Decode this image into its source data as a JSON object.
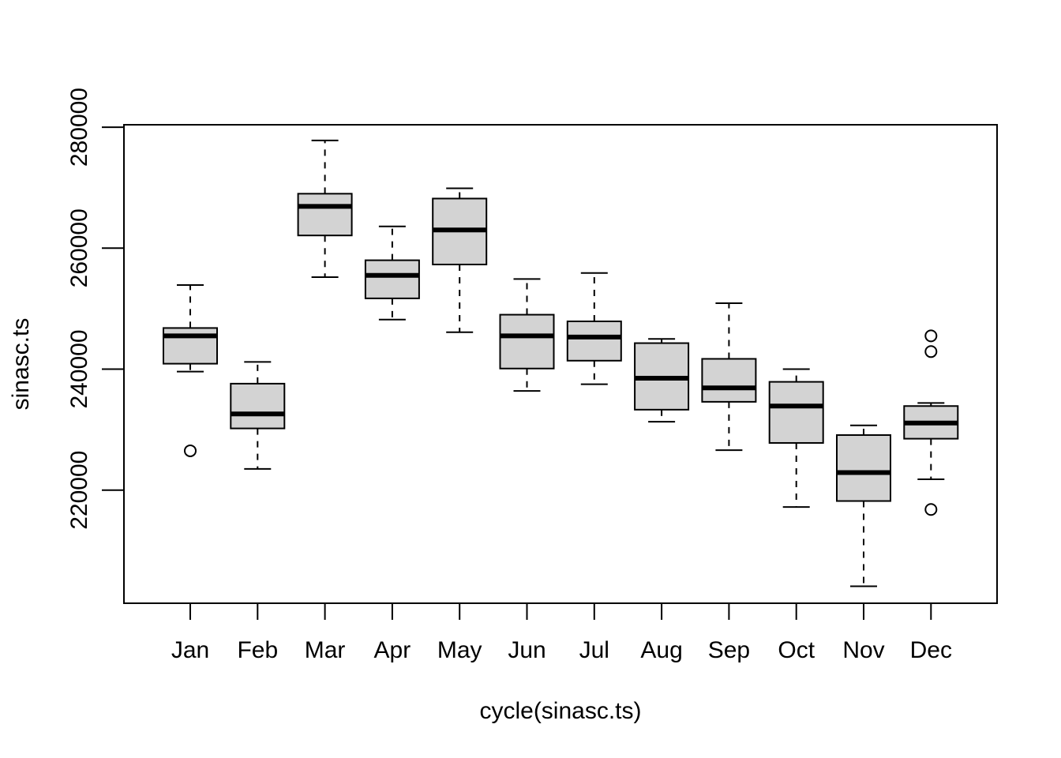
{
  "chart_data": {
    "type": "boxplot",
    "xlabel": "cycle(sinasc.ts)",
    "ylabel": "sinasc.ts",
    "categories": [
      "Jan",
      "Feb",
      "Mar",
      "Apr",
      "May",
      "Jun",
      "Jul",
      "Aug",
      "Sep",
      "Oct",
      "Nov",
      "Dec"
    ],
    "yticks": [
      220000,
      240000,
      260000,
      280000
    ],
    "ytick_labels": [
      "220000",
      "240000",
      "260000",
      "280000"
    ],
    "ylim": [
      201300,
      280400
    ],
    "grid": false,
    "colors": {
      "box_fill": "#d3d3d3",
      "stroke": "#000000",
      "background": "#ffffff"
    },
    "boxes": [
      {
        "label": "Jan",
        "whisker_low": 239600,
        "q1": 240900,
        "median": 245500,
        "q3": 246800,
        "whisker_high": 253900,
        "outliers": [
          226500
        ]
      },
      {
        "label": "Feb",
        "whisker_low": 223500,
        "q1": 230200,
        "median": 232600,
        "q3": 237600,
        "whisker_high": 241200,
        "outliers": []
      },
      {
        "label": "Mar",
        "whisker_low": 255200,
        "q1": 262100,
        "median": 266900,
        "q3": 269000,
        "whisker_high": 277800,
        "outliers": []
      },
      {
        "label": "Apr",
        "whisker_low": 248200,
        "q1": 251700,
        "median": 255500,
        "q3": 258000,
        "whisker_high": 263600,
        "outliers": []
      },
      {
        "label": "May",
        "whisker_low": 246100,
        "q1": 257300,
        "median": 263000,
        "q3": 268200,
        "whisker_high": 269900,
        "outliers": []
      },
      {
        "label": "Jun",
        "whisker_low": 236400,
        "q1": 240100,
        "median": 245500,
        "q3": 249000,
        "whisker_high": 254900,
        "outliers": []
      },
      {
        "label": "Jul",
        "whisker_low": 237500,
        "q1": 241400,
        "median": 245300,
        "q3": 247900,
        "whisker_high": 255900,
        "outliers": []
      },
      {
        "label": "Aug",
        "whisker_low": 231300,
        "q1": 233300,
        "median": 238500,
        "q3": 244300,
        "whisker_high": 245000,
        "outliers": []
      },
      {
        "label": "Sep",
        "whisker_low": 226600,
        "q1": 234600,
        "median": 236900,
        "q3": 241700,
        "whisker_high": 250900,
        "outliers": []
      },
      {
        "label": "Oct",
        "whisker_low": 217200,
        "q1": 227800,
        "median": 233900,
        "q3": 237900,
        "whisker_high": 240000,
        "outliers": []
      },
      {
        "label": "Nov",
        "whisker_low": 204100,
        "q1": 218200,
        "median": 222900,
        "q3": 229100,
        "whisker_high": 230700,
        "outliers": []
      },
      {
        "label": "Dec",
        "whisker_low": 221800,
        "q1": 228500,
        "median": 231100,
        "q3": 233900,
        "whisker_high": 234400,
        "outliers": [
          245500,
          242900,
          216800
        ]
      }
    ]
  }
}
